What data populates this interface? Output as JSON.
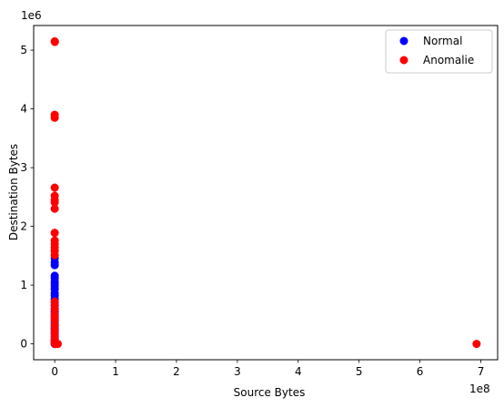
{
  "chart_data": {
    "type": "scatter",
    "xlabel": "Source Bytes",
    "ylabel": "Destination Bytes",
    "x_offset_label": "1e8",
    "y_offset_label": "1e6",
    "x_scale": 100000000,
    "y_scale": 1000000,
    "xlim": [
      -34600000,
      727600000
    ],
    "ylim": [
      -270000,
      5420000
    ],
    "x_ticks": [
      0,
      100000000,
      200000000,
      300000000,
      400000000,
      500000000,
      600000000,
      700000000
    ],
    "x_tick_labels": [
      "0",
      "1",
      "2",
      "3",
      "4",
      "5",
      "6",
      "7"
    ],
    "y_ticks": [
      0,
      1000000,
      2000000,
      3000000,
      4000000,
      5000000
    ],
    "y_tick_labels": [
      "0",
      "1",
      "2",
      "3",
      "4",
      "5"
    ],
    "grid": false,
    "legend_position": "top-right",
    "series": [
      {
        "name": "Normal",
        "color": "#0000ff",
        "points": [
          [
            0,
            0
          ],
          [
            200000,
            0
          ],
          [
            500000,
            0
          ],
          [
            1000000,
            0
          ],
          [
            2000000,
            0
          ],
          [
            0,
            20000
          ],
          [
            0,
            50000
          ],
          [
            0,
            80000
          ],
          [
            0,
            120000
          ],
          [
            0,
            160000
          ],
          [
            0,
            200000
          ],
          [
            0,
            240000
          ],
          [
            0,
            270000
          ],
          [
            0,
            310000
          ],
          [
            0,
            350000
          ],
          [
            0,
            390000
          ],
          [
            0,
            430000
          ],
          [
            0,
            470000
          ],
          [
            0,
            510000
          ],
          [
            0,
            550000
          ],
          [
            0,
            600000
          ],
          [
            0,
            650000
          ],
          [
            0,
            700000
          ],
          [
            0,
            760000
          ],
          [
            0,
            820000
          ],
          [
            0,
            860000
          ],
          [
            0,
            930000
          ],
          [
            0,
            980000
          ],
          [
            0,
            1020000
          ],
          [
            0,
            1060000
          ],
          [
            0,
            1120000
          ],
          [
            0,
            1160000
          ],
          [
            0,
            1340000
          ],
          [
            0,
            1390000
          ],
          [
            0,
            1460000
          ]
        ]
      },
      {
        "name": "Anomalie",
        "color": "#ff0000",
        "points": [
          [
            0,
            5150000
          ],
          [
            300000,
            5140000
          ],
          [
            0,
            3900000
          ],
          [
            0,
            3850000
          ],
          [
            0,
            2660000
          ],
          [
            0,
            2520000
          ],
          [
            0,
            2450000
          ],
          [
            0,
            2410000
          ],
          [
            0,
            2300000
          ],
          [
            0,
            1890000
          ],
          [
            0,
            1760000
          ],
          [
            0,
            1700000
          ],
          [
            0,
            1640000
          ],
          [
            0,
            1580000
          ],
          [
            0,
            1510000
          ],
          [
            0,
            720000
          ],
          [
            0,
            650000
          ],
          [
            0,
            590000
          ],
          [
            0,
            500000
          ],
          [
            0,
            450000
          ],
          [
            0,
            400000
          ],
          [
            0,
            320000
          ],
          [
            0,
            250000
          ],
          [
            0,
            180000
          ],
          [
            0,
            120000
          ],
          [
            0,
            60000
          ],
          [
            0,
            30000
          ],
          [
            0,
            5000
          ],
          [
            1000000,
            0
          ],
          [
            3000000,
            0
          ],
          [
            5000000,
            0
          ],
          [
            693000000,
            0
          ]
        ]
      }
    ]
  }
}
